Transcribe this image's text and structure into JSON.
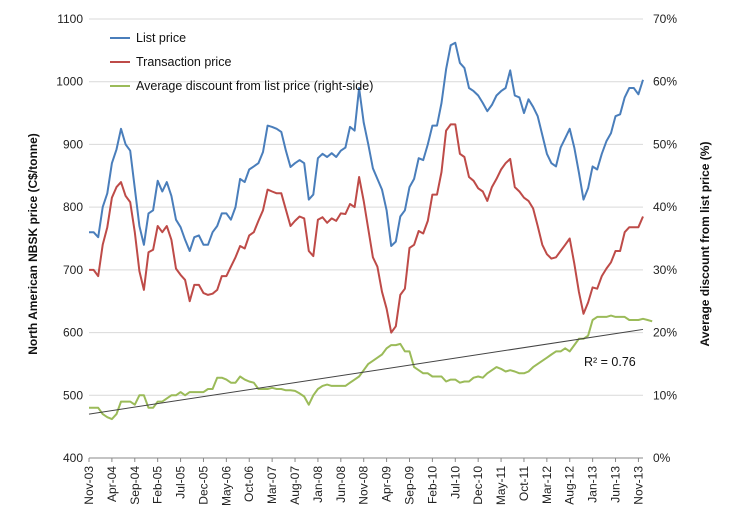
{
  "chart_data": {
    "type": "line",
    "title": "",
    "ylabel_left": "North American NBSK price (C$/tonne)",
    "ylabel_right": "Average discount from list price (%)",
    "ylim_left": [
      400,
      1100
    ],
    "ylim_right": [
      0,
      70
    ],
    "yticks_left": [
      "400",
      "500",
      "600",
      "700",
      "800",
      "900",
      "1000",
      "1100"
    ],
    "yticks_right": [
      "0%",
      "10%",
      "20%",
      "30%",
      "40%",
      "50%",
      "60%",
      "70%"
    ],
    "x_tick_labels": [
      "Nov-03",
      "Apr-04",
      "Sep-04",
      "Feb-05",
      "Jul-05",
      "Dec-05",
      "May-06",
      "Oct-06",
      "Mar-07",
      "Aug-07",
      "Jan-08",
      "Jun-08",
      "Nov-08",
      "Apr-09",
      "Sep-09",
      "Feb-10",
      "Jul-10",
      "Dec-10",
      "May-11",
      "Oct-11",
      "Mar-12",
      "Aug-12",
      "Jan-13",
      "Jun-13",
      "Nov-13"
    ],
    "legend_position": "top-left",
    "annotation": "R² = 0.76",
    "trendline": {
      "series": "Average discount from list price (right-side)",
      "start": 7,
      "end": 20.5
    },
    "series": [
      {
        "name": "List price",
        "color": "#4a7ebb",
        "axis": "left",
        "values": [
          760,
          760,
          752,
          800,
          822,
          870,
          892,
          925,
          900,
          890,
          830,
          770,
          740,
          790,
          795,
          842,
          825,
          840,
          818,
          780,
          768,
          748,
          730,
          752,
          755,
          740,
          740,
          760,
          770,
          790,
          790,
          780,
          800,
          845,
          840,
          860,
          865,
          870,
          888,
          930,
          928,
          925,
          920,
          890,
          864,
          870,
          875,
          870,
          812,
          820,
          878,
          885,
          880,
          886,
          880,
          890,
          895,
          928,
          922,
          990,
          935,
          900,
          862,
          845,
          828,
          795,
          738,
          745,
          785,
          795,
          832,
          845,
          878,
          875,
          900,
          930,
          930,
          966,
          1020,
          1058,
          1062,
          1030,
          1022,
          990,
          985,
          978,
          966,
          953,
          963,
          978,
          985,
          990,
          1018,
          978,
          975,
          950,
          972,
          960,
          945,
          915,
          885,
          870,
          865,
          895,
          910,
          925,
          895,
          855,
          812,
          830,
          865,
          860,
          885,
          905,
          918,
          945,
          948,
          975,
          990,
          990,
          980,
          1003
        ]
      },
      {
        "name": "Transaction price",
        "color": "#be4b48",
        "axis": "left",
        "values": [
          700,
          700,
          690,
          740,
          768,
          815,
          832,
          840,
          818,
          808,
          760,
          698,
          668,
          728,
          732,
          770,
          760,
          770,
          748,
          702,
          692,
          684,
          650,
          676,
          676,
          663,
          660,
          662,
          668,
          690,
          690,
          705,
          720,
          738,
          734,
          755,
          760,
          778,
          795,
          828,
          825,
          822,
          822,
          796,
          770,
          778,
          785,
          782,
          730,
          722,
          780,
          784,
          775,
          782,
          778,
          790,
          789,
          805,
          800,
          848,
          810,
          765,
          720,
          705,
          665,
          638,
          600,
          610,
          660,
          670,
          735,
          740,
          762,
          758,
          778,
          820,
          820,
          856,
          922,
          932,
          932,
          885,
          880,
          848,
          842,
          830,
          825,
          810,
          832,
          845,
          860,
          870,
          877,
          832,
          825,
          815,
          810,
          798,
          770,
          740,
          725,
          718,
          720,
          730,
          740,
          750,
          710,
          665,
          630,
          648,
          672,
          670,
          690,
          702,
          712,
          730,
          730,
          760,
          768,
          768,
          768,
          785
        ]
      },
      {
        "name": "Average discount from list price (right-side)",
        "color": "#9bbb59",
        "axis": "right",
        "values": [
          8,
          8,
          8,
          7,
          6.5,
          6.2,
          7,
          9,
          9,
          9,
          8.5,
          10,
          10,
          8,
          8,
          9,
          9,
          9.5,
          10,
          10,
          10.5,
          10,
          10.5,
          10.5,
          10.5,
          10.5,
          11,
          11,
          12.8,
          12.8,
          12.5,
          12,
          12,
          13,
          12.5,
          12.2,
          12,
          11,
          11,
          11,
          11.2,
          11,
          11,
          10.8,
          10.8,
          10.7,
          10.3,
          9.8,
          8.5,
          10,
          11,
          11.5,
          11.7,
          11.5,
          11.5,
          11.5,
          11.5,
          12,
          12.5,
          13,
          14,
          15,
          15.5,
          16,
          16.5,
          17.5,
          18,
          18,
          18.2,
          17,
          17,
          14.5,
          14,
          13.5,
          13.5,
          13,
          13,
          13,
          12.2,
          12.5,
          12.5,
          12,
          12.2,
          12.2,
          12.8,
          13,
          12.8,
          13.5,
          14,
          14.5,
          14.2,
          13.8,
          14,
          13.8,
          13.5,
          13.5,
          13.8,
          14.5,
          15,
          15.5,
          16,
          16.5,
          17,
          17,
          17.5,
          17,
          18,
          19,
          19,
          19.5,
          22,
          22.5,
          22.5,
          22.5,
          22.7,
          22.5,
          22.5,
          22.5,
          22,
          22,
          22,
          22.2,
          22,
          21.8
        ]
      }
    ]
  }
}
